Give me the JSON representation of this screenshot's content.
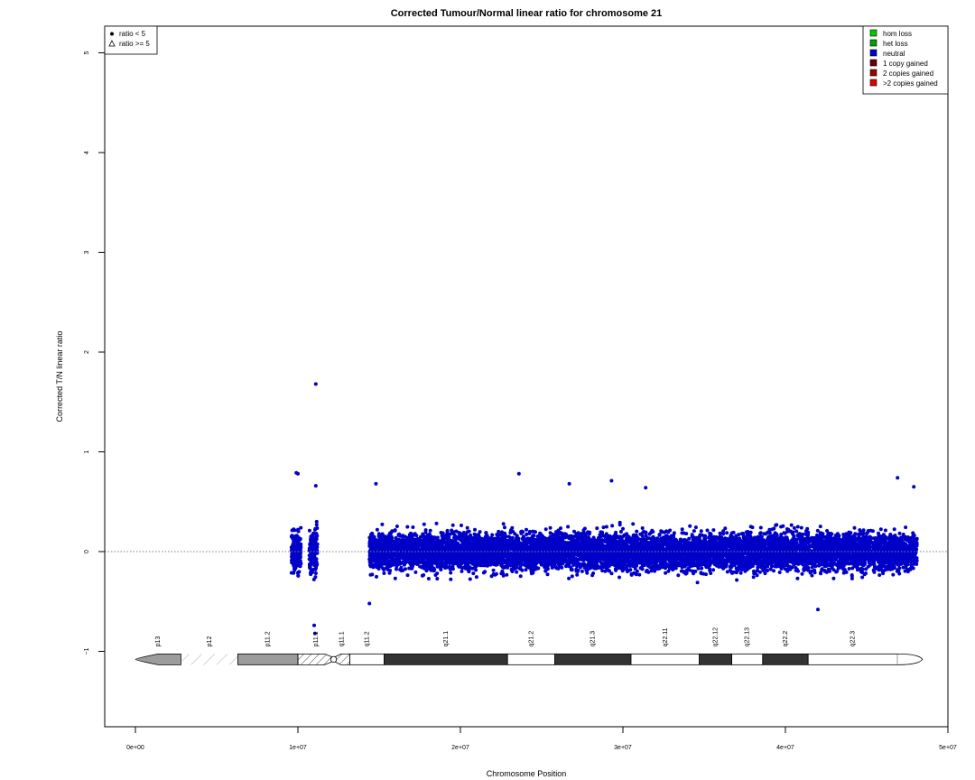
{
  "chart_data": {
    "type": "scatter",
    "title": "Corrected Tumour/Normal linear ratio for chromosome  21",
    "xlabel": "Chromosome Position",
    "ylabel": "Corrected T/N linear ratio",
    "xlim": [
      0,
      50000000
    ],
    "ylim": [
      -1.75,
      5.25
    ],
    "x_ticks": [
      0,
      10000000,
      20000000,
      30000000,
      40000000,
      50000000
    ],
    "x_tick_labels": [
      "0e+00",
      "1e+07",
      "2e+07",
      "3e+07",
      "4e+07",
      "5e+07"
    ],
    "y_ticks": [
      -1,
      0,
      1,
      2,
      3,
      4,
      5
    ],
    "y_tick_labels": [
      "−1",
      "0",
      "1",
      "2",
      "3",
      "4",
      "5"
    ],
    "reference_line": {
      "y": 0,
      "style": "dotted",
      "color": "#7f7f7f"
    },
    "point_color": "#0000c8",
    "series": [
      {
        "name": "ratio < 5",
        "marker": "circle",
        "clusters": [
          {
            "x_start": 9600000,
            "x_end": 10200000,
            "center": 0.0,
            "spread": 0.16,
            "count": 180
          },
          {
            "x_start": 10700000,
            "x_end": 11200000,
            "center": 0.0,
            "spread": 0.18,
            "count": 180
          },
          {
            "x_start": 14400000,
            "x_end": 48100000,
            "center": 0.0,
            "spread": 0.14,
            "count": 9000
          }
        ],
        "outliers": [
          {
            "x": 11100000,
            "y": 1.68
          },
          {
            "x": 9900000,
            "y": 0.79
          },
          {
            "x": 10000000,
            "y": 0.78
          },
          {
            "x": 11100000,
            "y": 0.66
          },
          {
            "x": 11050000,
            "y": -0.82
          },
          {
            "x": 11000000,
            "y": -0.74
          },
          {
            "x": 14800000,
            "y": 0.68
          },
          {
            "x": 23600000,
            "y": 0.78
          },
          {
            "x": 29300000,
            "y": 0.71
          },
          {
            "x": 26700000,
            "y": 0.68
          },
          {
            "x": 46900000,
            "y": 0.74
          },
          {
            "x": 47900000,
            "y": 0.65
          },
          {
            "x": 42000000,
            "y": -0.58
          },
          {
            "x": 14400000,
            "y": -0.52
          },
          {
            "x": 31400000,
            "y": 0.64
          }
        ]
      },
      {
        "name": "ratio >= 5",
        "marker": "triangle",
        "points": []
      }
    ],
    "legend_points": {
      "position": "top-left",
      "entries": [
        {
          "label": "ratio < 5",
          "marker": "circle"
        },
        {
          "label": "ratio >= 5",
          "marker": "triangle"
        }
      ]
    },
    "legend_states": {
      "position": "top-right",
      "entries": [
        {
          "label": "hom loss",
          "color": "#00cc00"
        },
        {
          "label": "het loss",
          "color": "#00a000"
        },
        {
          "label": "neutral",
          "color": "#0000c8"
        },
        {
          "label": "1 copy gained",
          "color": "#6a0000"
        },
        {
          "label": "2 copies gained",
          "color": "#a00000"
        },
        {
          "label": ">2 copies gained",
          "color": "#e00000"
        }
      ]
    },
    "ideogram": {
      "y": -1.08,
      "bands": [
        {
          "name": "p13",
          "start": 0,
          "end": 2800000,
          "kind": "p-terminal",
          "fill": "#9c9c9c"
        },
        {
          "name": "p12",
          "start": 2800000,
          "end": 6300000,
          "kind": "stalk",
          "fill": "#ffffff"
        },
        {
          "name": "p11.2",
          "start": 6300000,
          "end": 10000000,
          "kind": "band",
          "fill": "#9c9c9c"
        },
        {
          "name": "p11.1",
          "start": 10000000,
          "end": 12200000,
          "kind": "cen-p",
          "fill": "#ffffff"
        },
        {
          "name": "q11.1",
          "start": 12200000,
          "end": 13200000,
          "kind": "cen-q",
          "fill": "#ffffff"
        },
        {
          "name": "q11.2",
          "start": 13200000,
          "end": 15300000,
          "kind": "band",
          "fill": "#ffffff"
        },
        {
          "name": "q21.1",
          "start": 15300000,
          "end": 22900000,
          "kind": "band",
          "fill": "#333333"
        },
        {
          "name": "q21.2",
          "start": 22900000,
          "end": 25800000,
          "kind": "band",
          "fill": "#ffffff"
        },
        {
          "name": "q21.3",
          "start": 25800000,
          "end": 30500000,
          "kind": "band",
          "fill": "#333333"
        },
        {
          "name": "q22.11",
          "start": 30500000,
          "end": 34700000,
          "kind": "band",
          "fill": "#ffffff"
        },
        {
          "name": "q22.12",
          "start": 34700000,
          "end": 36700000,
          "kind": "band",
          "fill": "#333333"
        },
        {
          "name": "q22.13",
          "start": 36700000,
          "end": 38600000,
          "kind": "band",
          "fill": "#ffffff"
        },
        {
          "name": "q22.2",
          "start": 38600000,
          "end": 41400000,
          "kind": "band",
          "fill": "#333333"
        },
        {
          "name": "q22.3",
          "start": 41400000,
          "end": 46900000,
          "kind": "band",
          "fill": "#ffffff"
        },
        {
          "name": "",
          "start": 46900000,
          "end": 47100000,
          "kind": "q-terminal",
          "fill": "#ffffff"
        }
      ]
    }
  }
}
